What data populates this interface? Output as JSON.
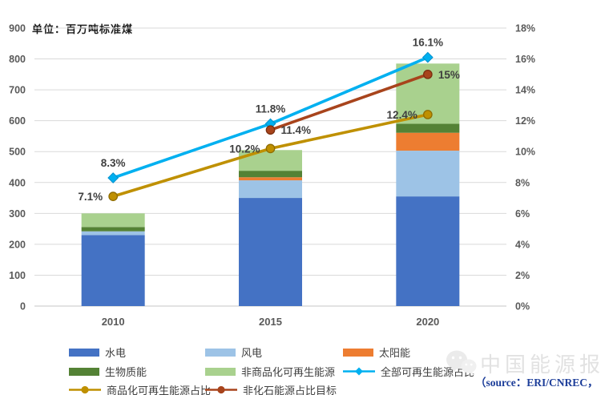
{
  "watermark": {
    "brand": "中国能源报",
    "source": "（source：ERI/CNREC，"
  },
  "chart_data": {
    "type": "bar",
    "subtype": "stacked bars with two percentage line series overlay",
    "unit_label": "单位：百万吨标准煤",
    "categories": [
      "2010",
      "2015",
      "2020"
    ],
    "left_axis": {
      "min": 0,
      "max": 900,
      "step": 100
    },
    "right_axis": {
      "min": 0,
      "max": 18,
      "step": 2,
      "suffix": "%"
    },
    "grid": "on",
    "legend_position": "bottom",
    "colors": {
      "grid": "#d9d9d9",
      "axis_line": "#c6c6c6"
    },
    "bar_series": [
      {
        "key": "hydro",
        "name": "水电",
        "color": "#4472C4",
        "values": [
          230,
          350,
          355
        ]
      },
      {
        "key": "wind",
        "name": "风电",
        "color": "#9DC3E6",
        "values": [
          12,
          57,
          148
        ]
      },
      {
        "key": "solar",
        "name": "太阳能",
        "color": "#ED7D31",
        "values": [
          0,
          10,
          58
        ]
      },
      {
        "key": "biomass",
        "name": "生物质能",
        "color": "#548235",
        "values": [
          14,
          21,
          29
        ]
      },
      {
        "key": "non-commercial-renewable",
        "name": "非商品化可再生能源",
        "color": "#A9D18E",
        "values": [
          44,
          67,
          195
        ]
      }
    ],
    "bar_totals": [
      300,
      505,
      785
    ],
    "line_series": [
      {
        "key": "all-renewable-share",
        "name": "全部可再生能源占比",
        "color": "#00B0F0",
        "marker": "diamond",
        "marker_stroke": "#0090CC",
        "values": [
          8.3,
          11.8,
          16.1
        ],
        "labels": [
          "8.3%",
          "11.8%",
          "16.1%"
        ],
        "label_pos": [
          "above",
          "above",
          "above"
        ]
      },
      {
        "key": "commercial-renewable-share",
        "name": "商品化可再生能源占比",
        "color": "#BF9000",
        "marker": "circle",
        "marker_stroke": "#8F6C00",
        "values": [
          7.1,
          10.2,
          12.4
        ],
        "labels": [
          "7.1%",
          "10.2%",
          "12.4%"
        ],
        "label_pos": [
          "left",
          "left",
          "left"
        ]
      },
      {
        "key": "non-fossil-target",
        "name": "非化石能源占比目标",
        "color": "#A8441C",
        "marker": "circle",
        "marker_stroke": "#7A2F10",
        "values": [
          null,
          11.4,
          15
        ],
        "labels": [
          "",
          "11.4%",
          "15%"
        ],
        "label_pos": [
          "right",
          "right",
          "right"
        ]
      }
    ]
  }
}
